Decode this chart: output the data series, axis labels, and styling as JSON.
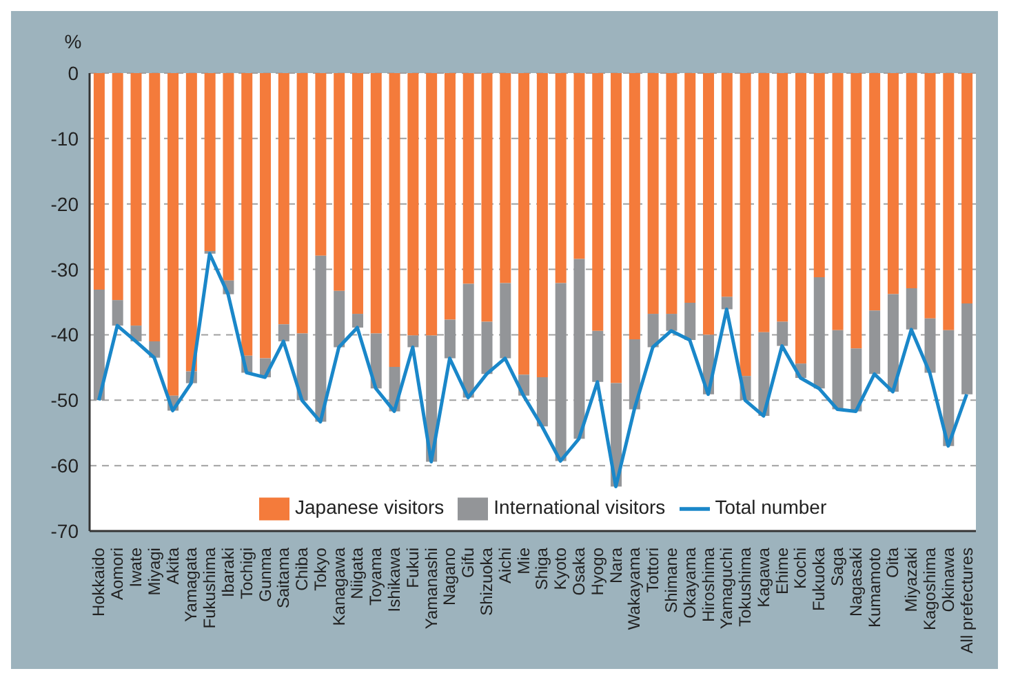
{
  "chart_data": {
    "type": "bar",
    "stacked": true,
    "ylabel": "%",
    "ylim": [
      -70,
      0
    ],
    "yticks": [
      0,
      -10,
      -20,
      -30,
      -40,
      -50,
      -60,
      -70
    ],
    "grid": "y",
    "legend": "bottom",
    "marker": "none",
    "line_style": "solid",
    "categories": [
      "Hokkaido",
      "Aomori",
      "Iwate",
      "Miyagi",
      "Akita",
      "Yamagata",
      "Fukushima",
      "Ibaraki",
      "Tochigi",
      "Gunma",
      "Saitama",
      "Chiba",
      "Tokyo",
      "Kanagawa",
      "Niigata",
      "Toyama",
      "Ishikawa",
      "Fukui",
      "Yamanashi",
      "Nagano",
      "Gifu",
      "Shizuoka",
      "Aichi",
      "Mie",
      "Shiga",
      "Kyoto",
      "Osaka",
      "Hyogo",
      "Nara",
      "Wakayama",
      "Tottori",
      "Shimane",
      "Okayama",
      "Hiroshima",
      "Yamaguchi",
      "Tokushima",
      "Kagawa",
      "Ehime",
      "Kochi",
      "Fukuoka",
      "Saga",
      "Nagasaki",
      "Kumamoto",
      "Oita",
      "Miyazaki",
      "Kagoshima",
      "Okinawa",
      "All prefectures"
    ],
    "series": [
      {
        "name": "Japanese visitors",
        "color": "#f47b3b",
        "values": [
          -33.1,
          -34.7,
          -38.6,
          -41,
          -49.3,
          -45.6,
          -27.2,
          -31.7,
          -43.2,
          -43.6,
          -38.4,
          -39.8,
          -27.9,
          -33.3,
          -36.8,
          -39.8,
          -44.9,
          -40.1,
          -40.1,
          -37.7,
          -32.2,
          -38,
          -32.1,
          -46.1,
          -46.5,
          -32.1,
          -28.4,
          -39.4,
          -47.4,
          -40.7,
          -36.8,
          -36.8,
          -35.1,
          -40,
          -34.2,
          -46.3,
          -39.6,
          -38,
          -44.4,
          -31.2,
          -39.3,
          -42.1,
          -36.3,
          -33.8,
          -32.9,
          -37.5,
          -39.3,
          -35.2
        ]
      },
      {
        "name": "International visitors",
        "color": "#939598",
        "values": [
          -16.9,
          -3.9,
          -2.4,
          -2.5,
          -2.3,
          -1.8,
          -0.4,
          -2.1,
          -2.6,
          -2.9,
          -2.6,
          -10.2,
          -25.4,
          -8.6,
          -2.1,
          -8.4,
          -6.8,
          -1.8,
          -19.3,
          -5.9,
          -17.4,
          -8,
          -11.5,
          -3.2,
          -7.5,
          -27.2,
          -27.5,
          -7.8,
          -15.8,
          -10.7,
          -5.1,
          -2.6,
          -5.7,
          -9.1,
          -1.9,
          -3.7,
          -12.8,
          -3.7,
          -2.2,
          -17,
          -12.1,
          -9.6,
          -9.7,
          -14.9,
          -6.3,
          -8.3,
          -17.7,
          -13.9
        ]
      },
      {
        "name": "Total number",
        "type": "line",
        "color": "#1a87c9",
        "values": [
          -50,
          -38.6,
          -41,
          -43.5,
          -51.6,
          -47.4,
          -27.6,
          -33.8,
          -45.8,
          -46.5,
          -41,
          -50,
          -53.3,
          -41.9,
          -38.9,
          -48.2,
          -51.7,
          -41.9,
          -59.4,
          -43.6,
          -49.6,
          -46,
          -43.6,
          -49.3,
          -54,
          -59.3,
          -55.9,
          -47.2,
          -63.2,
          -51.4,
          -41.9,
          -39.4,
          -40.8,
          -49.1,
          -36.1,
          -50,
          -52.4,
          -41.7,
          -46.6,
          -48.2,
          -51.4,
          -51.7,
          -46,
          -48.7,
          -39.2,
          -45.8,
          -57,
          -49.1
        ]
      }
    ]
  }
}
